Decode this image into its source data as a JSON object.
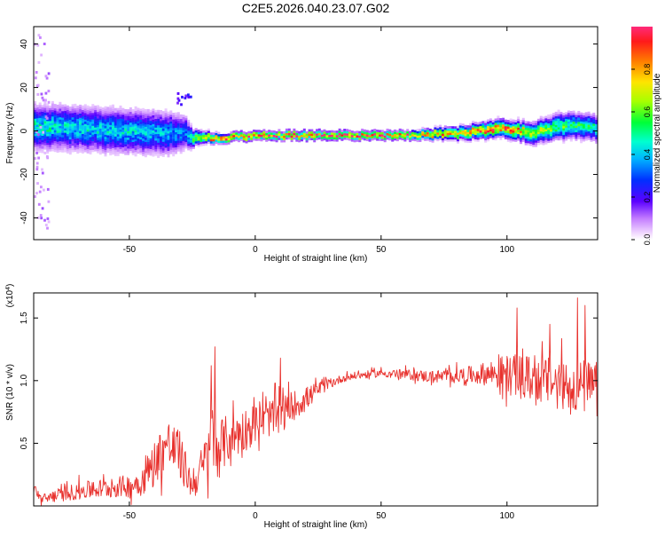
{
  "title": "C2E5.2026.040.23.07.G02",
  "chart_data": [
    {
      "type": "heatmap",
      "xlabel": "Height of straight line (km)",
      "ylabel": "Frequency (Hz)",
      "xlim": [
        -88,
        136
      ],
      "ylim": [
        -50,
        48
      ],
      "xticks": [
        -50,
        0,
        50,
        100
      ],
      "xtick_labels": [
        "-50",
        "0",
        "50",
        "100"
      ],
      "yticks": [
        -40,
        -20,
        0,
        20,
        40
      ],
      "ytick_labels": [
        "-40",
        "-20",
        "0",
        "20",
        "40"
      ],
      "colorbar": {
        "label": "Normalized spectral amplitude",
        "range": [
          0,
          1
        ],
        "ticks": [
          0.0,
          0.2,
          0.4,
          0.6,
          0.8
        ],
        "tick_labels": [
          "0.0",
          "0.2",
          "0.4",
          "0.6",
          "0.8"
        ]
      },
      "ridge": {
        "x": [
          -88,
          -70,
          -50,
          -35,
          -28,
          -25,
          -22,
          -18,
          -10,
          0,
          20,
          40,
          60,
          80,
          95,
          100,
          110,
          120,
          125,
          136
        ],
        "freq": [
          2,
          1,
          0,
          -1,
          -1,
          -3,
          -3,
          -3,
          -3,
          -2,
          -2,
          -2,
          -2,
          -1,
          1,
          1,
          -1,
          2,
          3,
          1
        ],
        "spread": [
          5,
          5,
          5,
          5,
          4,
          2,
          1.5,
          1.2,
          1,
          1,
          1,
          1,
          1,
          1.5,
          2,
          2,
          2.5,
          3,
          3,
          3
        ],
        "amp": [
          0.5,
          0.45,
          0.45,
          0.4,
          0.35,
          0.6,
          0.8,
          0.9,
          0.95,
          0.95,
          0.95,
          0.95,
          0.9,
          0.85,
          0.9,
          0.9,
          0.7,
          0.6,
          0.55,
          0.5
        ]
      },
      "grid": false
    },
    {
      "type": "line",
      "xlabel": "Height of straight line (km)",
      "ylabel": "SNR (10 * v/v)",
      "y_multiplier": "(x10^4)",
      "xlim": [
        -88,
        136
      ],
      "ylim": [
        0,
        1.7
      ],
      "xticks": [
        -50,
        0,
        50,
        100
      ],
      "xtick_labels": [
        "-50",
        "0",
        "50",
        "100"
      ],
      "yticks": [
        0.5,
        1.0,
        1.5
      ],
      "ytick_labels": [
        "0.5",
        "1.0",
        "1.5"
      ],
      "series": [
        {
          "color": "#e8312d",
          "envelope_x": [
            -88,
            -85,
            -80,
            -70,
            -60,
            -50,
            -45,
            -40,
            -35,
            -30,
            -25,
            -20,
            -17,
            -15,
            -10,
            -5,
            0,
            5,
            10,
            15,
            20,
            25,
            30,
            35,
            40,
            50,
            60,
            70,
            80,
            90,
            95,
            100,
            110,
            120,
            130,
            136
          ],
          "envelope_mean": [
            0.15,
            0.05,
            0.08,
            0.12,
            0.14,
            0.16,
            0.2,
            0.35,
            0.5,
            0.4,
            0.15,
            0.35,
            0.55,
            0.45,
            0.55,
            0.6,
            0.65,
            0.7,
            0.72,
            0.8,
            0.85,
            0.93,
            0.98,
            1.02,
            1.04,
            1.06,
            1.05,
            1.03,
            1.04,
            1.05,
            1.06,
            1.05,
            1.02,
            0.98,
            0.95,
            0.93
          ],
          "envelope_noise": [
            0.05,
            0.04,
            0.05,
            0.07,
            0.08,
            0.09,
            0.12,
            0.18,
            0.22,
            0.2,
            0.1,
            0.2,
            0.3,
            0.25,
            0.18,
            0.18,
            0.15,
            0.15,
            0.15,
            0.12,
            0.1,
            0.06,
            0.04,
            0.03,
            0.03,
            0.03,
            0.04,
            0.05,
            0.06,
            0.08,
            0.12,
            0.16,
            0.18,
            0.2,
            0.22,
            0.22
          ],
          "spikes": [
            {
              "x": -16,
              "y": 1.27
            },
            {
              "x": -17.5,
              "y": 1.12
            },
            {
              "x": 10,
              "y": 1.18
            },
            {
              "x": 104,
              "y": 1.58
            },
            {
              "x": 117,
              "y": 1.45
            },
            {
              "x": 128,
              "y": 1.66
            },
            {
              "x": 131,
              "y": 1.6
            }
          ]
        }
      ],
      "grid": false
    }
  ]
}
